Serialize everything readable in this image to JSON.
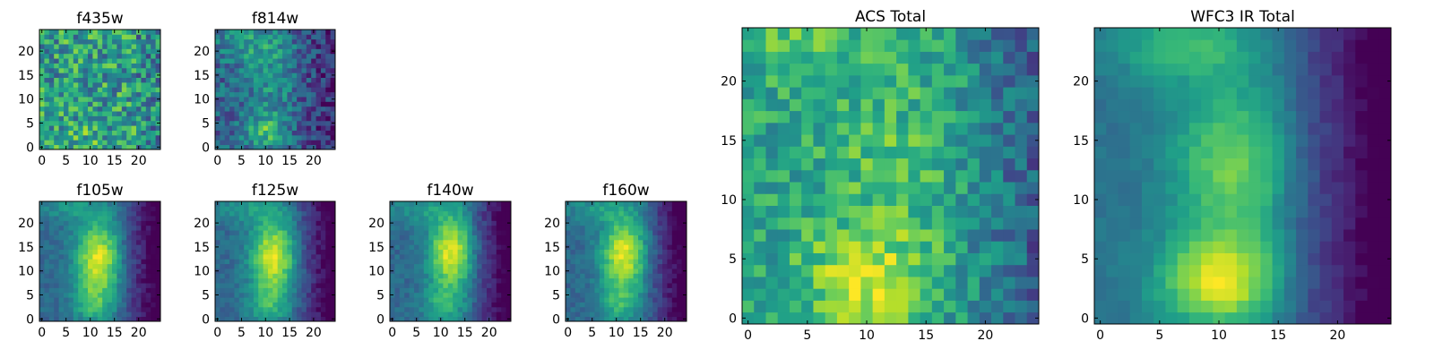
{
  "colormap": "viridis",
  "colors": {
    "frame": "#000000",
    "background": "#ffffff",
    "viridis_stops": [
      "#440154",
      "#482878",
      "#3e4989",
      "#31688e",
      "#26828e",
      "#1f9e89",
      "#35b779",
      "#6ece58",
      "#b5de2b",
      "#fde725"
    ]
  },
  "chart_data": [
    {
      "type": "heatmap",
      "id": "f435w",
      "title": "f435w",
      "grid": false,
      "shape": [
        25,
        25
      ],
      "xlim": [
        -0.5,
        24.5
      ],
      "ylim": [
        -0.5,
        24.5
      ],
      "xticks": [
        0,
        5,
        10,
        15,
        20
      ],
      "yticks": [
        0,
        5,
        10,
        15,
        20
      ],
      "xtick_labels": [
        "0",
        "5",
        "10",
        "15",
        "20"
      ],
      "ytick_labels": [
        "0",
        "5",
        "10",
        "15",
        "20"
      ],
      "vrange": [
        0.0,
        1.0
      ],
      "peak": {
        "x": 9.5,
        "y": 3.0
      }
    },
    {
      "type": "heatmap",
      "id": "f814w",
      "title": "f814w",
      "grid": false,
      "shape": [
        25,
        25
      ],
      "xlim": [
        -0.5,
        24.5
      ],
      "ylim": [
        -0.5,
        24.5
      ],
      "xticks": [
        0,
        5,
        10,
        15,
        20
      ],
      "yticks": [
        0,
        5,
        10,
        15,
        20
      ],
      "xtick_labels": [
        "0",
        "5",
        "10",
        "15",
        "20"
      ],
      "ytick_labels": [
        "0",
        "5",
        "10",
        "15",
        "20"
      ],
      "vrange": [
        0.0,
        1.0
      ],
      "peak": {
        "x": 10.0,
        "y": 3.5
      }
    },
    {
      "type": "heatmap",
      "id": "f105w",
      "title": "f105w",
      "grid": false,
      "shape": [
        25,
        25
      ],
      "xlim": [
        -0.5,
        24.5
      ],
      "ylim": [
        -0.5,
        24.5
      ],
      "xticks": [
        0,
        5,
        10,
        15,
        20
      ],
      "yticks": [
        0,
        5,
        10,
        15,
        20
      ],
      "xtick_labels": [
        "0",
        "5",
        "10",
        "15",
        "20"
      ],
      "ytick_labels": [
        "0",
        "5",
        "10",
        "15",
        "20"
      ],
      "vrange": [
        0.0,
        1.0
      ],
      "peak": {
        "x": 11.5,
        "y": 12.5
      }
    },
    {
      "type": "heatmap",
      "id": "f125w",
      "title": "f125w",
      "grid": false,
      "shape": [
        25,
        25
      ],
      "xlim": [
        -0.5,
        24.5
      ],
      "ylim": [
        -0.5,
        24.5
      ],
      "xticks": [
        0,
        5,
        10,
        15,
        20
      ],
      "yticks": [
        0,
        5,
        10,
        15,
        20
      ],
      "xtick_labels": [
        "0",
        "5",
        "10",
        "15",
        "20"
      ],
      "ytick_labels": [
        "0",
        "5",
        "10",
        "15",
        "20"
      ],
      "vrange": [
        0.0,
        1.0
      ],
      "peak": {
        "x": 11.5,
        "y": 13.0
      }
    },
    {
      "type": "heatmap",
      "id": "f140w",
      "title": "f140w",
      "grid": false,
      "shape": [
        25,
        25
      ],
      "xlim": [
        -0.5,
        24.5
      ],
      "ylim": [
        -0.5,
        24.5
      ],
      "xticks": [
        0,
        5,
        10,
        15,
        20
      ],
      "yticks": [
        0,
        5,
        10,
        15,
        20
      ],
      "xtick_labels": [
        "0",
        "5",
        "10",
        "15",
        "20"
      ],
      "ytick_labels": [
        "0",
        "5",
        "10",
        "15",
        "20"
      ],
      "vrange": [
        0.0,
        1.0
      ],
      "peak": {
        "x": 12.0,
        "y": 14.0
      }
    },
    {
      "type": "heatmap",
      "id": "f160w",
      "title": "f160w",
      "grid": false,
      "shape": [
        25,
        25
      ],
      "xlim": [
        -0.5,
        24.5
      ],
      "ylim": [
        -0.5,
        24.5
      ],
      "xticks": [
        0,
        5,
        10,
        15,
        20
      ],
      "yticks": [
        0,
        5,
        10,
        15,
        20
      ],
      "xtick_labels": [
        "0",
        "5",
        "10",
        "15",
        "20"
      ],
      "ytick_labels": [
        "0",
        "5",
        "10",
        "15",
        "20"
      ],
      "vrange": [
        0.0,
        1.0
      ],
      "peak": {
        "x": 11.5,
        "y": 13.5
      }
    },
    {
      "type": "heatmap",
      "id": "acs-total",
      "title": "ACS Total",
      "grid": false,
      "shape": [
        25,
        25
      ],
      "xlim": [
        -0.5,
        24.5
      ],
      "ylim": [
        -0.5,
        24.5
      ],
      "xticks": [
        0,
        5,
        10,
        15,
        20
      ],
      "yticks": [
        0,
        5,
        10,
        15,
        20
      ],
      "xtick_labels": [
        "0",
        "5",
        "10",
        "15",
        "20"
      ],
      "ytick_labels": [
        "0",
        "5",
        "10",
        "15",
        "20"
      ],
      "vrange": [
        0.0,
        1.0
      ],
      "peak": {
        "x": 10.0,
        "y": 3.0
      }
    },
    {
      "type": "heatmap",
      "id": "wfc3-ir-total",
      "title": "WFC3 IR Total",
      "grid": false,
      "shape": [
        25,
        25
      ],
      "xlim": [
        -0.5,
        24.5
      ],
      "ylim": [
        -0.5,
        24.5
      ],
      "xticks": [
        0,
        5,
        10,
        15,
        20
      ],
      "yticks": [
        0,
        5,
        10,
        15,
        20
      ],
      "xtick_labels": [
        "0",
        "5",
        "10",
        "15",
        "20"
      ],
      "ytick_labels": [
        "0",
        "5",
        "10",
        "15",
        "20"
      ],
      "vrange": [
        0.0,
        1.0
      ],
      "peak": {
        "x": 10.0,
        "y": 3.0
      }
    }
  ]
}
